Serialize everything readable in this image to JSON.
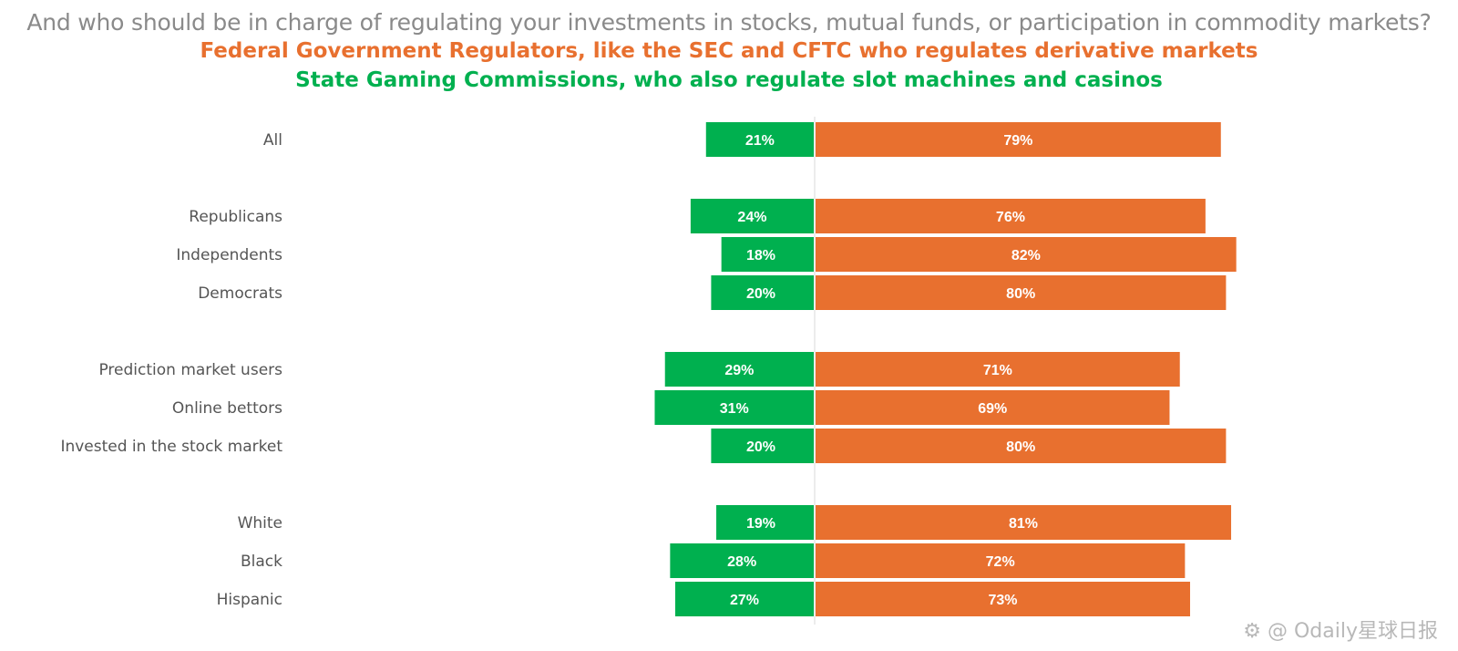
{
  "chart_data": {
    "type": "bar",
    "orientation": "horizontal-diverging",
    "title": "And who should be in charge of regulating your investments in stocks, mutual funds, or participation in commodity markets?",
    "series": [
      {
        "name": "Federal Government Regulators, like the SEC and CFTC who regulates derivative markets",
        "color": "#e8702f",
        "values": [
          79,
          76,
          82,
          80,
          71,
          69,
          80,
          81,
          72,
          73
        ]
      },
      {
        "name": "State Gaming Commissions, who also regulate slot machines and casinos",
        "color": "#00b04f",
        "values": [
          21,
          24,
          18,
          20,
          29,
          31,
          20,
          19,
          28,
          27
        ]
      }
    ],
    "categories": [
      "All",
      "Republicans",
      "Independents",
      "Democrats",
      "Prediction market users",
      "Online bettors",
      "Invested in the stock market",
      "White",
      "Black",
      "Hispanic"
    ],
    "groups": [
      [
        0
      ],
      [
        1,
        2,
        3
      ],
      [
        4,
        5,
        6
      ],
      [
        7,
        8,
        9
      ]
    ],
    "value_suffix": "%",
    "xlim": [
      -31,
      82
    ]
  },
  "watermark": "⚙ @ Odaily星球日报"
}
